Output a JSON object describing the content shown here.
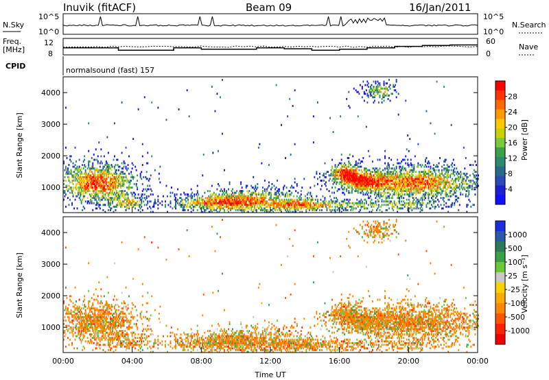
{
  "header": {
    "station": "Inuvik (fitACF)",
    "beam": "Beam 09",
    "date": "16/Jan/2011"
  },
  "strips": {
    "nsky_label": "N.Sky",
    "nsky_ticks": [
      "10^5",
      "10^0"
    ],
    "nsearch_label": "N.Search",
    "nsearch_ticks": [
      "10^5",
      "10^0"
    ],
    "freq_label_line1": "Freq.",
    "freq_label_line2": "[MHz]",
    "freq_ticks": [
      "12",
      "8"
    ],
    "nave_label": "Nave",
    "nave_ticks": [
      "60",
      "0"
    ],
    "cpid_label": "CPID",
    "cpid_text": "normalsound (fast) 157"
  },
  "chart_data": [
    {
      "type": "heatmap",
      "name": "power-panel",
      "ylabel": "Slant Range [km]",
      "xlabel": "",
      "yticks": [
        1000,
        2000,
        3000,
        4000
      ],
      "ylim": [
        200,
        4500
      ],
      "xlim": [
        0,
        24
      ],
      "colorbar": {
        "label": "Power [dB]",
        "ticks": [
          "28",
          "24",
          "20",
          "16",
          "12",
          "8",
          "4"
        ],
        "colors": [
          "#ff0000",
          "#ff3300",
          "#ff6a00",
          "#ff9a00",
          "#ffc800",
          "#c8d200",
          "#7ac83c",
          "#3ca046",
          "#2e8a6e",
          "#286a8c",
          "#2a4ab8",
          "#1e1ed2",
          "#1010ff"
        ]
      }
    },
    {
      "type": "heatmap",
      "name": "velocity-panel",
      "ylabel": "Slant Range [km]",
      "xlabel": "Time UT",
      "yticks": [
        1000,
        2000,
        3000,
        4000
      ],
      "ylim": [
        200,
        4500
      ],
      "xlim": [
        0,
        24
      ],
      "xticks": [
        "00:00",
        "04:00",
        "08:00",
        "12:00",
        "16:00",
        "20:00",
        "00:00"
      ],
      "colorbar": {
        "label": "Velocity [m s⁻¹]",
        "ticks": [
          "1000",
          "500",
          "100",
          "25",
          "-25",
          "-100",
          "-500",
          "-1000"
        ],
        "colors": [
          "#1a2ee0",
          "#2c58a8",
          "#2c7a5a",
          "#3aa046",
          "#6ac83a",
          "#c8c8c8",
          "#ffd000",
          "#ffaa00",
          "#ff8800",
          "#ff5500",
          "#ff2200",
          "#ee0000"
        ]
      }
    }
  ]
}
